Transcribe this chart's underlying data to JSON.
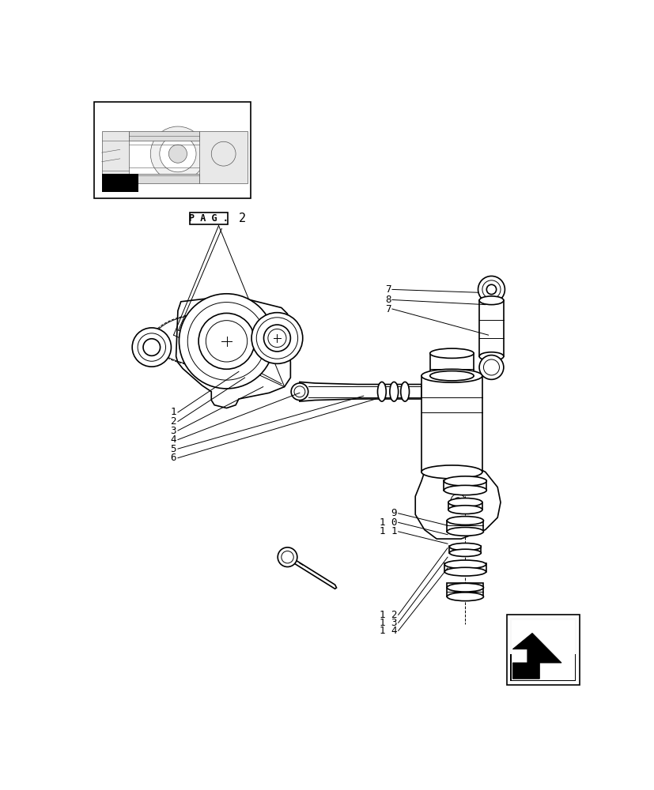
{
  "bg_color": "#ffffff",
  "line_color": "#000000",
  "fig_width": 8.28,
  "fig_height": 10.0,
  "dpi": 100,
  "pag_text": "P A G .",
  "pag_num": "2"
}
